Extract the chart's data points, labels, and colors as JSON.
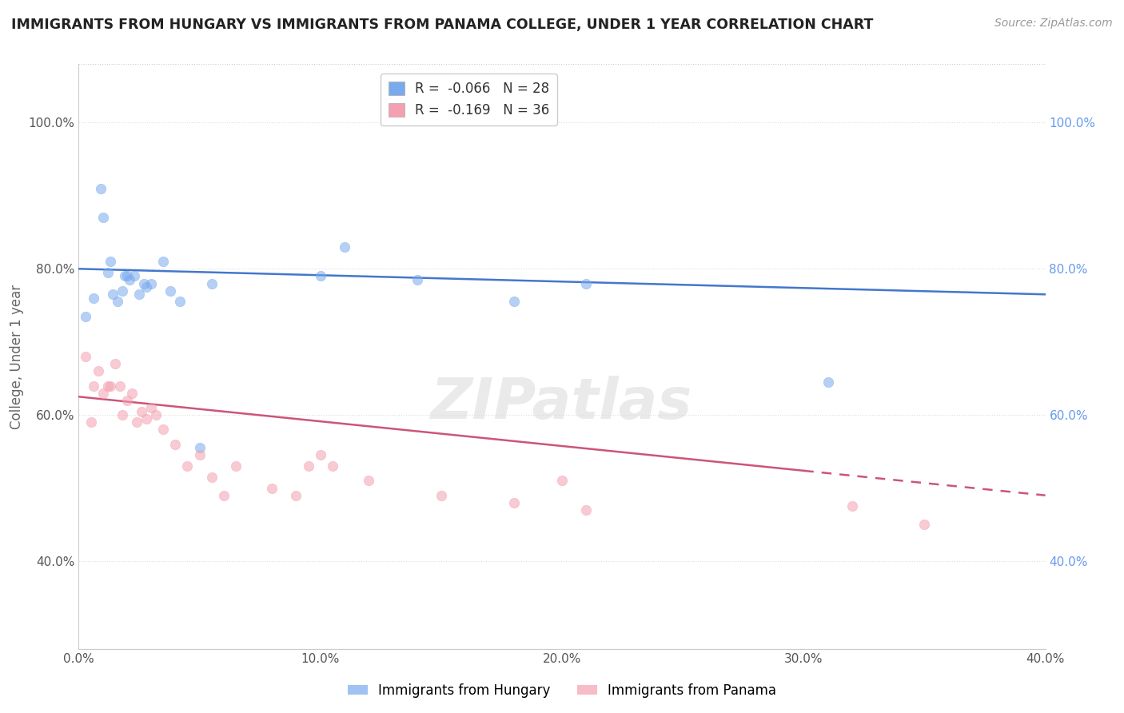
{
  "title": "IMMIGRANTS FROM HUNGARY VS IMMIGRANTS FROM PANAMA COLLEGE, UNDER 1 YEAR CORRELATION CHART",
  "source": "Source: ZipAtlas.com",
  "ylabel": "College, Under 1 year",
  "xlim": [
    0.0,
    0.4
  ],
  "ylim": [
    0.28,
    1.08
  ],
  "xtick_labels": [
    "0.0%",
    "10.0%",
    "20.0%",
    "30.0%",
    "40.0%"
  ],
  "xtick_vals": [
    0.0,
    0.1,
    0.2,
    0.3,
    0.4
  ],
  "ytick_labels": [
    "40.0%",
    "60.0%",
    "80.0%",
    "100.0%"
  ],
  "ytick_vals": [
    0.4,
    0.6,
    0.8,
    1.0
  ],
  "hungary_color": "#7aaaee",
  "panama_color": "#f4a0b0",
  "hungary_R": -0.066,
  "hungary_N": 28,
  "panama_R": -0.169,
  "panama_N": 36,
  "hungary_scatter_x": [
    0.003,
    0.006,
    0.009,
    0.01,
    0.012,
    0.013,
    0.014,
    0.016,
    0.018,
    0.019,
    0.02,
    0.021,
    0.023,
    0.025,
    0.027,
    0.028,
    0.03,
    0.035,
    0.038,
    0.042,
    0.05,
    0.055,
    0.1,
    0.11,
    0.14,
    0.18,
    0.21,
    0.31
  ],
  "hungary_scatter_y": [
    0.735,
    0.76,
    0.91,
    0.87,
    0.795,
    0.81,
    0.765,
    0.755,
    0.77,
    0.79,
    0.79,
    0.785,
    0.79,
    0.765,
    0.78,
    0.775,
    0.78,
    0.81,
    0.77,
    0.755,
    0.555,
    0.78,
    0.79,
    0.83,
    0.785,
    0.755,
    0.78,
    0.645
  ],
  "panama_scatter_x": [
    0.003,
    0.005,
    0.006,
    0.008,
    0.01,
    0.012,
    0.013,
    0.015,
    0.017,
    0.018,
    0.02,
    0.022,
    0.024,
    0.026,
    0.028,
    0.03,
    0.032,
    0.035,
    0.04,
    0.045,
    0.05,
    0.055,
    0.06,
    0.065,
    0.08,
    0.09,
    0.095,
    0.1,
    0.105,
    0.12,
    0.15,
    0.18,
    0.2,
    0.21,
    0.32,
    0.35
  ],
  "panama_scatter_y": [
    0.68,
    0.59,
    0.64,
    0.66,
    0.63,
    0.64,
    0.64,
    0.67,
    0.64,
    0.6,
    0.62,
    0.63,
    0.59,
    0.605,
    0.595,
    0.61,
    0.6,
    0.58,
    0.56,
    0.53,
    0.545,
    0.515,
    0.49,
    0.53,
    0.5,
    0.49,
    0.53,
    0.545,
    0.53,
    0.51,
    0.49,
    0.48,
    0.51,
    0.47,
    0.475,
    0.45
  ],
  "hungary_line_x": [
    0.0,
    0.4
  ],
  "hungary_line_y": [
    0.8,
    0.765
  ],
  "panama_line_x": [
    0.0,
    0.4
  ],
  "panama_line_y": [
    0.625,
    0.49
  ],
  "panama_line_solid_end": 0.3,
  "watermark_text": "ZIPatlas",
  "background_color": "#ffffff",
  "grid_color": "#dddddd",
  "grid_top_color": "#cccccc"
}
